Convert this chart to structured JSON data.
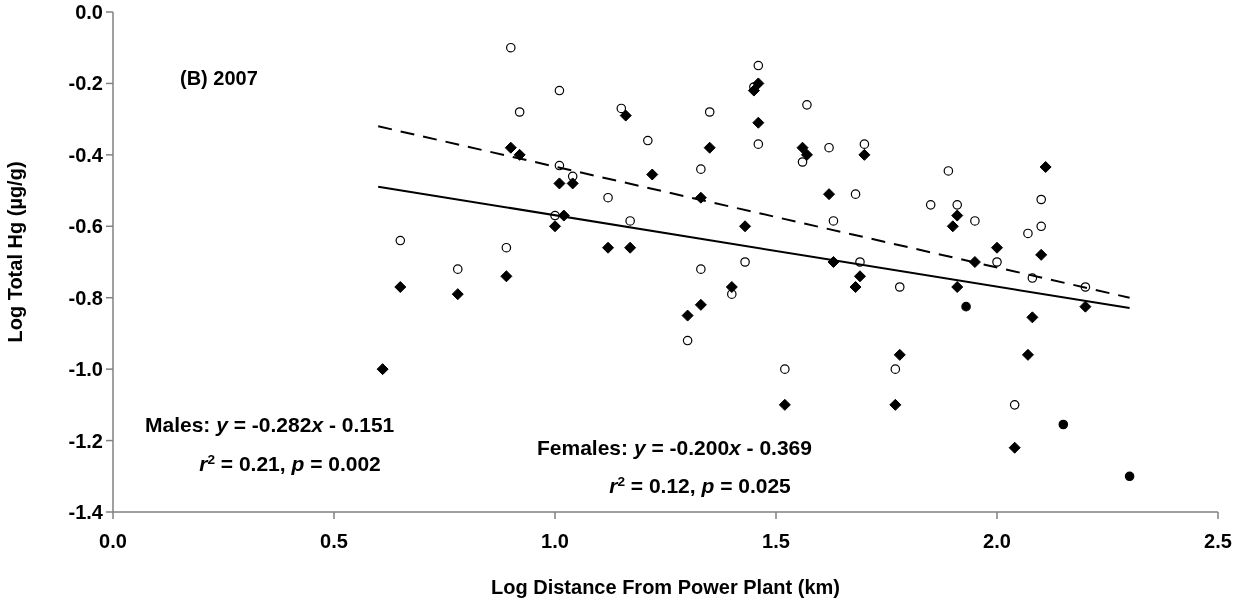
{
  "chart_data": {
    "type": "scatter",
    "xlabel": "Log Distance From Power Plant (km)",
    "ylabel": "Log Total Hg (µg/g)",
    "xlim": [
      0,
      2.5
    ],
    "xticks": [
      {
        "value": 0,
        "label": "0.0"
      },
      {
        "value": 0.5,
        "label": "0.5"
      },
      {
        "value": 1,
        "label": "1.0"
      },
      {
        "value": 1.5,
        "label": "1.5"
      },
      {
        "value": 2,
        "label": "2.0"
      },
      {
        "value": 2.5,
        "label": "2.5"
      }
    ],
    "ylim": [
      -1.4,
      0
    ],
    "yticks": [
      {
        "value": -1.4,
        "label": "-1.4"
      },
      {
        "value": -1.2,
        "label": "-1.2"
      },
      {
        "value": -1,
        "label": "-1.0"
      },
      {
        "value": -0.8,
        "label": "-0.8"
      },
      {
        "value": -0.6,
        "label": "-0.6"
      },
      {
        "value": -0.4,
        "label": "-0.4"
      },
      {
        "value": -0.2,
        "label": "-0.2"
      },
      {
        "value": 0,
        "label": "0.0"
      }
    ],
    "grid": false,
    "annotations": [
      "(B) 2007",
      "Males: y = -0.282x - 0.151",
      "r$^{2}$ = 0.21, p = 0.002",
      "Females: y = -0.200x - 0.369",
      "r$^{2}$ = 0.12, p = 0.025"
    ],
    "series": [
      {
        "marker": "circle",
        "color": "#ffffff",
        "x": [
          0.9,
          1.01,
          0.92,
          1.15,
          1.21,
          1.01,
          1.04,
          1.12,
          1.0,
          1.17,
          0.65,
          0.89,
          0.78,
          1.46,
          1.45,
          1.35,
          1.57,
          1.46,
          1.62,
          1.7,
          1.56,
          1.33,
          1.68,
          1.85,
          1.63,
          1.43,
          1.69,
          1.33,
          1.78,
          1.4,
          1.3,
          1.52,
          1.77,
          1.89,
          1.91,
          2.1,
          1.95,
          2.07,
          2.1,
          2.0,
          2.08,
          2.2,
          2.04
        ],
        "values": [
          -0.1,
          -0.22,
          -0.28,
          -0.27,
          -0.36,
          -0.43,
          -0.46,
          -0.52,
          -0.57,
          -0.585,
          -0.64,
          -0.66,
          -0.72,
          -0.15,
          -0.21,
          -0.28,
          -0.26,
          -0.37,
          -0.38,
          -0.37,
          -0.42,
          -0.44,
          -0.51,
          -0.54,
          -0.585,
          -0.7,
          -0.7,
          -0.72,
          -0.77,
          -0.79,
          -0.92,
          -1.0,
          -1.0,
          -0.445,
          -0.54,
          -0.525,
          -0.585,
          -0.62,
          -0.6,
          -0.7,
          -0.745,
          -0.77,
          -1.1
        ]
      },
      {
        "marker": "diamond",
        "color": "#000000",
        "x": [
          1.16,
          0.9,
          0.92,
          1.01,
          1.04,
          1.02,
          1.0,
          1.12,
          1.17,
          0.89,
          0.65,
          0.78,
          0.61,
          1.46,
          1.45,
          1.46,
          1.35,
          1.56,
          1.57,
          1.7,
          1.22,
          1.62,
          1.33,
          1.43,
          1.63,
          1.4,
          1.69,
          1.68,
          1.33,
          1.3,
          1.78,
          1.52,
          1.77,
          2.11,
          1.91,
          1.9,
          2.0,
          2.1,
          1.95,
          1.91,
          2.2,
          2.08,
          2.07,
          2.04
        ],
        "values": [
          -0.29,
          -0.38,
          -0.4,
          -0.48,
          -0.48,
          -0.57,
          -0.6,
          -0.66,
          -0.66,
          -0.74,
          -0.77,
          -0.79,
          -1.0,
          -0.2,
          -0.22,
          -0.31,
          -0.38,
          -0.38,
          -0.4,
          -0.4,
          -0.455,
          -0.51,
          -0.52,
          -0.6,
          -0.7,
          -0.77,
          -0.74,
          -0.77,
          -0.82,
          -0.85,
          -0.96,
          -1.1,
          -1.1,
          -0.434,
          -0.57,
          -0.6,
          -0.66,
          -0.68,
          -0.7,
          -0.77,
          -0.825,
          -0.855,
          -0.96,
          -1.22
        ]
      },
      {
        "marker": "circle",
        "color": "#000000",
        "x": [
          1.93,
          2.15,
          2.3
        ],
        "values": [
          -0.825,
          -1.155,
          -1.3
        ]
      },
      {
        "type": "line",
        "line_style": "dashed",
        "color": "#000000",
        "x": [
          0.6,
          2.3
        ],
        "values": [
          -0.32,
          -0.8
        ]
      },
      {
        "type": "line",
        "line_style": "solid",
        "color": "#000000",
        "x": [
          0.6,
          2.3
        ],
        "values": [
          -0.489,
          -0.829
        ]
      }
    ]
  }
}
